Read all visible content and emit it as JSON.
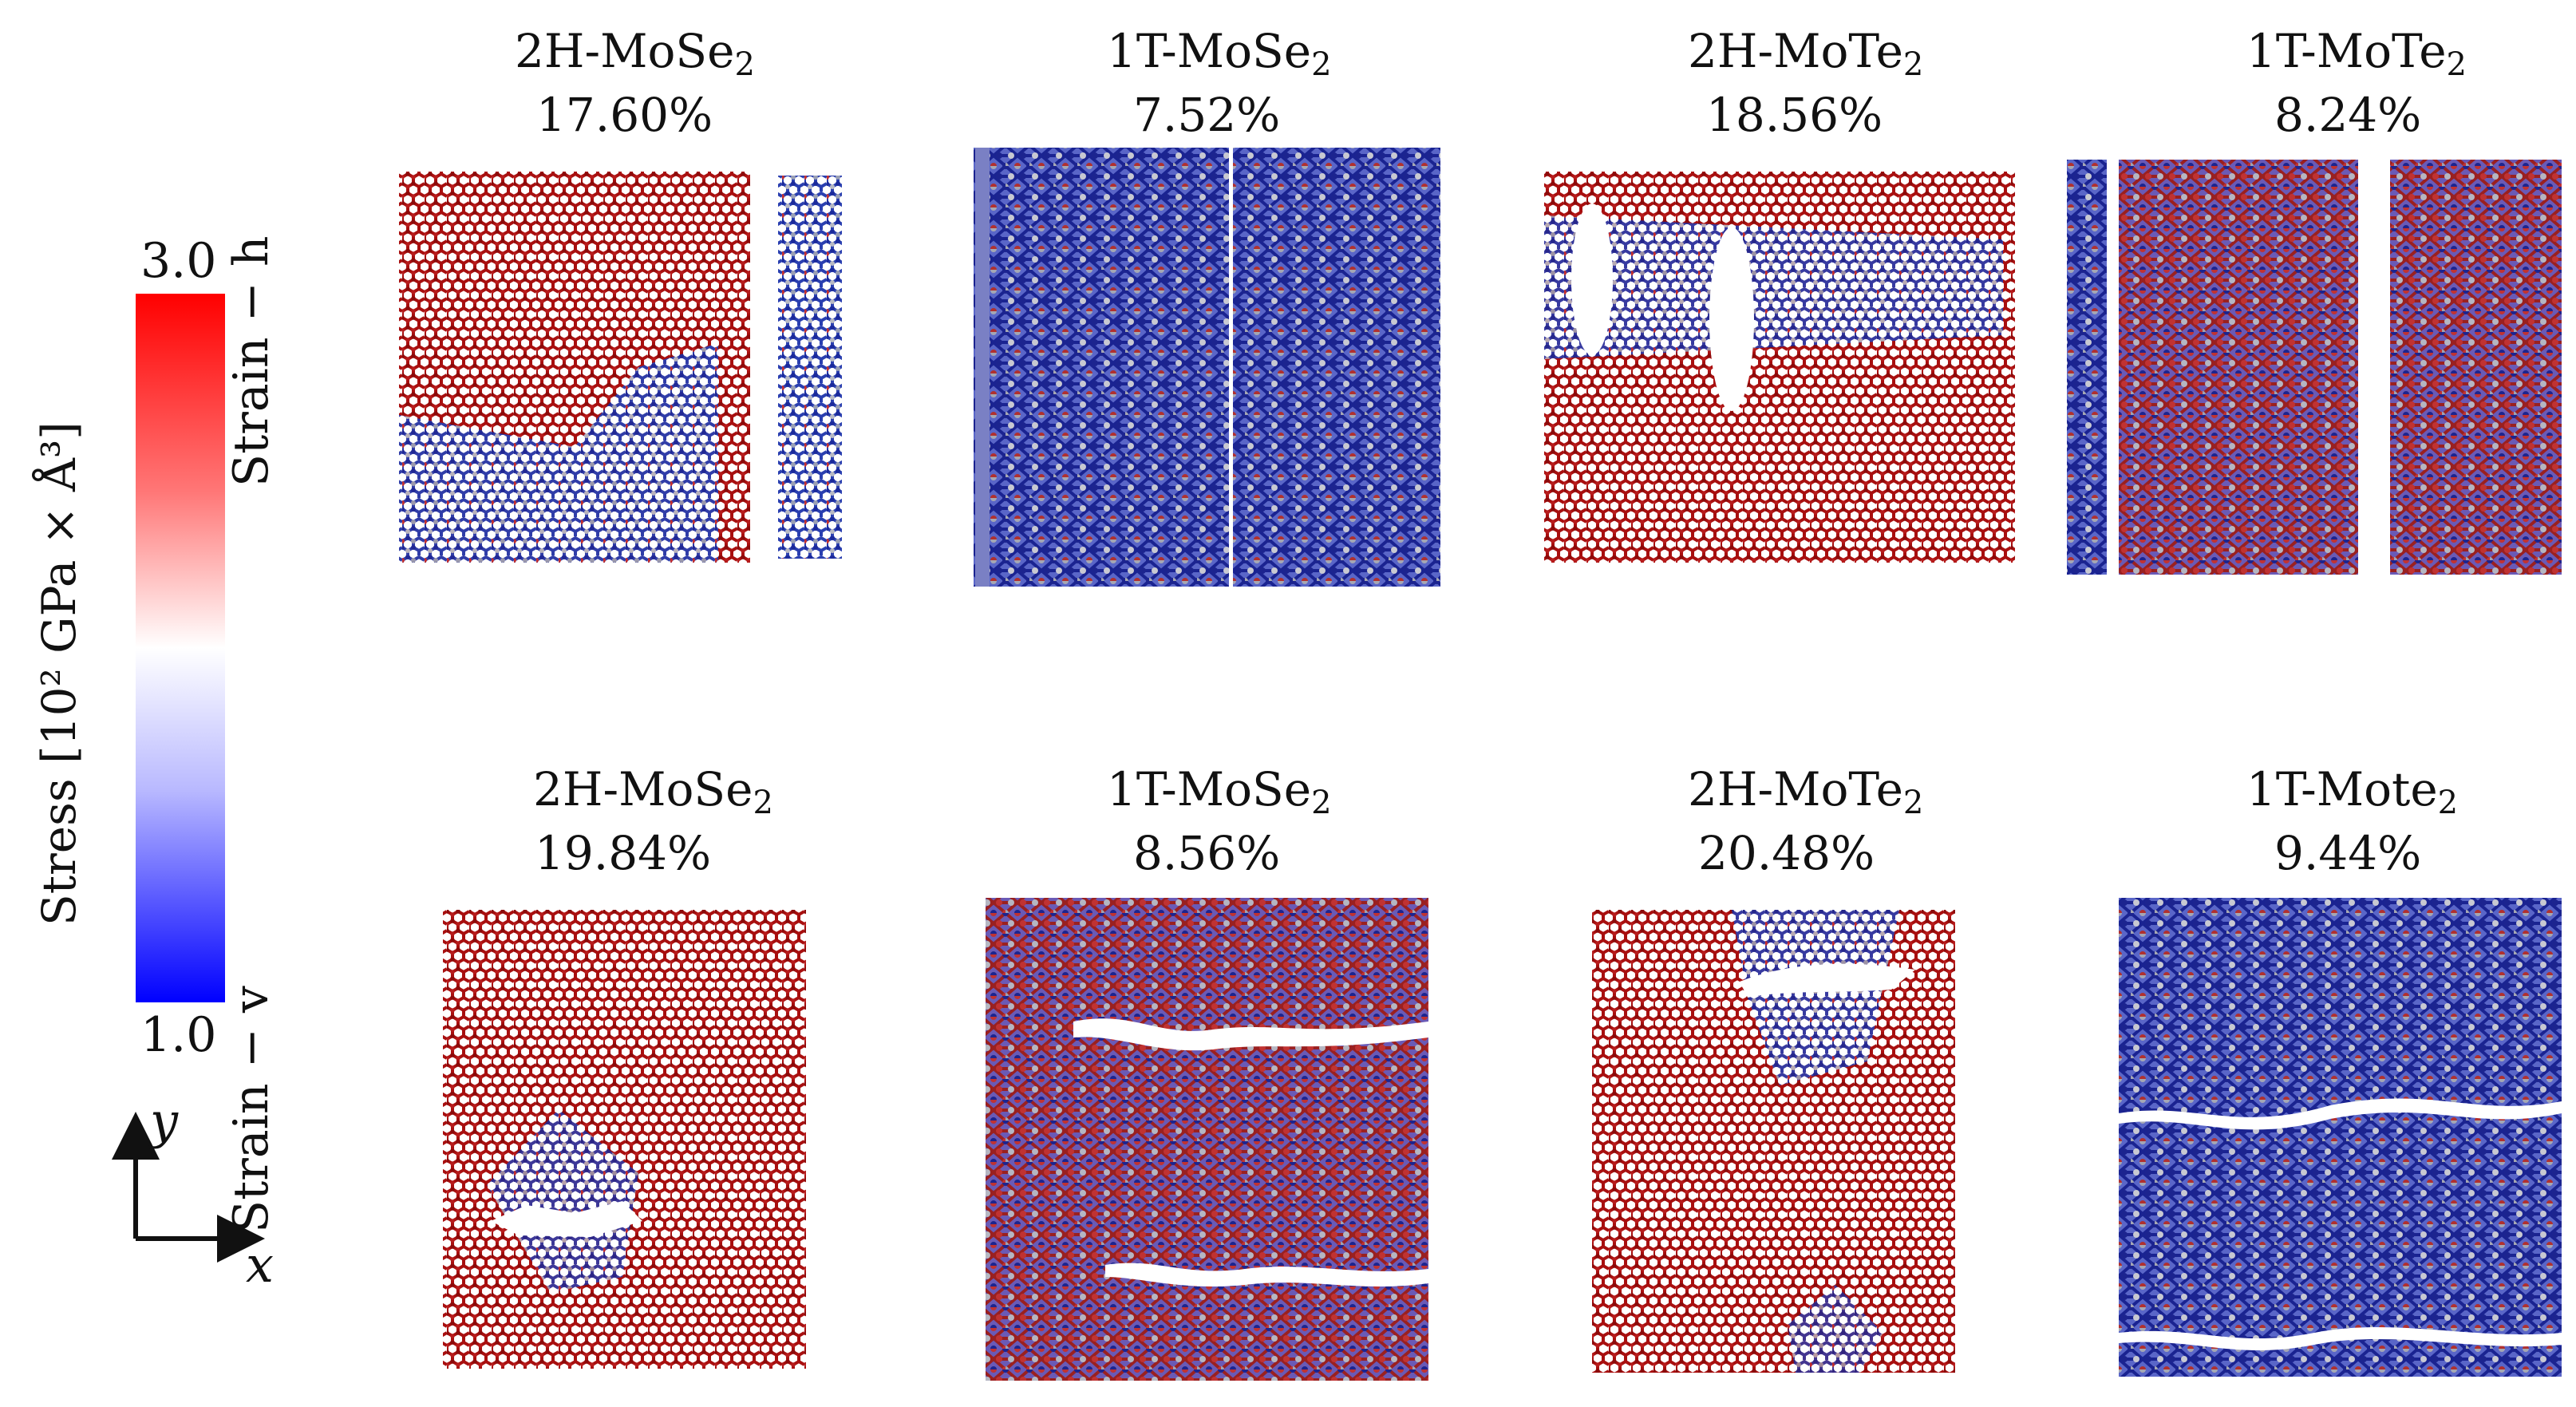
{
  "colorbar": {
    "max_label": "3.0",
    "min_label": "1.0",
    "axis_label": "Stress",
    "unit_label": "[10² GPa × Å³]",
    "colors": [
      "#ff0000",
      "#ffffff",
      "#0000ff"
    ]
  },
  "axes_indicator": {
    "x_label": "x",
    "y_label": "y"
  },
  "rows": [
    {
      "label": "Strain − h",
      "panels": [
        {
          "name": "2H-MoSe",
          "sub": "2",
          "strain": "17.60%",
          "phase": "2H"
        },
        {
          "name": "1T-MoSe",
          "sub": "2",
          "strain": "7.52%",
          "phase": "1T"
        },
        {
          "name": "2H-MoTe",
          "sub": "2",
          "strain": "18.56%",
          "phase": "2H"
        },
        {
          "name": "1T-MoTe",
          "sub": "2",
          "strain": "8.24%",
          "phase": "1T"
        }
      ]
    },
    {
      "label": "Strain − v",
      "panels": [
        {
          "name": "2H-MoSe",
          "sub": "2",
          "strain": "19.84%",
          "phase": "2H"
        },
        {
          "name": "1T-MoSe",
          "sub": "2",
          "strain": "8.56%",
          "phase": "1T"
        },
        {
          "name": "2H-MoTe",
          "sub": "2",
          "strain": "20.48%",
          "phase": "2H"
        },
        {
          "name": "1T-Mote",
          "sub": "2",
          "strain": "9.44%",
          "phase": "1T"
        }
      ]
    }
  ]
}
